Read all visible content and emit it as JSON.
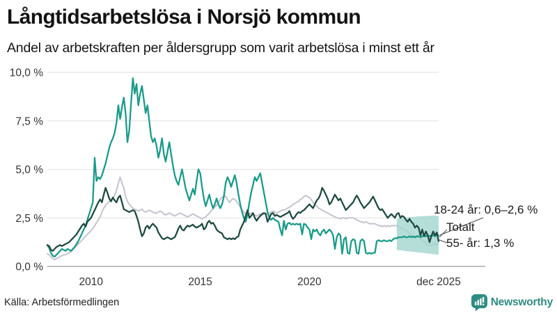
{
  "header": {
    "title": "Långtidsarbetslösa i Norsjö kommun",
    "subtitle": "Andel av arbetskraften per åldersgrupp som varit arbetslösa i minst ett år"
  },
  "chart_data": {
    "type": "line",
    "unit": "%",
    "x_start_year": 2008.0,
    "x_interval_months": 1,
    "ylim": [
      0,
      10
    ],
    "grid": "horizontal",
    "yticks": [
      {
        "value": 10,
        "label": "10,0 %"
      },
      {
        "value": 7.5,
        "label": "7,5 %"
      },
      {
        "value": 5,
        "label": "5,0 %"
      },
      {
        "value": 2.5,
        "label": "2,5 %"
      },
      {
        "value": 0,
        "label": "0,0 %"
      }
    ],
    "xticks": [
      {
        "value": 2010,
        "label": "2010"
      },
      {
        "value": 2015,
        "label": "2015"
      },
      {
        "value": 2020,
        "label": "2020"
      },
      {
        "value": 2025.9167,
        "label": "dec 2025"
      }
    ],
    "series": [
      {
        "name": "18-24 år",
        "color": "#1b9b89",
        "width": 2.3,
        "values": [
          1.1,
          0.95,
          0.7,
          0.55,
          0.5,
          0.6,
          0.7,
          0.8,
          0.9,
          0.85,
          0.8,
          0.9,
          0.85,
          0.8,
          0.9,
          1.0,
          1.15,
          1.3,
          1.5,
          1.7,
          1.9,
          2.1,
          2.4,
          2.7,
          3.0,
          3.3,
          5.6,
          4.4,
          4.6,
          4.5,
          4.7,
          5.0,
          5.3,
          5.7,
          6.1,
          6.4,
          6.6,
          6.9,
          7.4,
          8.3,
          7.6,
          8.2,
          8.7,
          7.9,
          6.4,
          7.0,
          8.4,
          9.7,
          8.9,
          9.4,
          8.3,
          8.9,
          9.3,
          8.6,
          7.9,
          8.3,
          7.5,
          6.7,
          6.4,
          6.6,
          6.2,
          5.6,
          6.0,
          6.6,
          5.8,
          5.4,
          5.9,
          6.4,
          5.8,
          5.2,
          4.7,
          4.4,
          4.2,
          4.6,
          5.0,
          4.5,
          4.0,
          3.7,
          3.4,
          3.7,
          4.0,
          3.7,
          4.4,
          5.0,
          4.8,
          4.1,
          3.5,
          3.1,
          3.4,
          3.7,
          3.3,
          3.0,
          3.2,
          3.5,
          3.2,
          3.0,
          3.2,
          3.6,
          4.3,
          4.6,
          4.4,
          4.1,
          4.4,
          4.7,
          4.3,
          3.7,
          3.2,
          2.8,
          2.5,
          2.3,
          2.7,
          3.3,
          3.8,
          4.2,
          4.6,
          4.4,
          4.6,
          4.8,
          4.3,
          3.8,
          3.3,
          2.8,
          2.5,
          2.4,
          2.5,
          2.4,
          2.35,
          2.3,
          1.9,
          1.6,
          2.35,
          1.9,
          2.2,
          2.25,
          2.15,
          2.2,
          2.15,
          2.2,
          2.15,
          2.2,
          1.65,
          2.2,
          2.15,
          2.0,
          1.9,
          1.4,
          1.9,
          1.8,
          1.9,
          1.7,
          1.6,
          1.8,
          1.9,
          1.7,
          1.8,
          1.9,
          1.8,
          1.6,
          0.9,
          1.5,
          1.7,
          1.6,
          0.65,
          1.4,
          1.5,
          0.7,
          0.65,
          1.3,
          1.4,
          1.35,
          0.7,
          0.65,
          1.3,
          1.4,
          1.3,
          0.7,
          0.65,
          0.7,
          0.65,
          0.7,
          0.7,
          1.3,
          1.35,
          1.3,
          1.3,
          1.35,
          1.3,
          1.3,
          1.35,
          1.3,
          1.4,
          1.45,
          1.45,
          1.5,
          1.5,
          1.5,
          1.55,
          1.5,
          1.5,
          1.55,
          1.5,
          1.55,
          1.5,
          1.55,
          1.55,
          1.5,
          1.55,
          1.6,
          1.55,
          1.6,
          1.55,
          1.6,
          1.6,
          1.55,
          1.65,
          1.6
        ]
      },
      {
        "name": "Totalt",
        "color": "#c5c3ce",
        "width": 2.0,
        "values": [
          0.65,
          0.6,
          0.5,
          0.4,
          0.35,
          0.4,
          0.45,
          0.5,
          0.55,
          0.6,
          0.6,
          0.65,
          0.7,
          0.75,
          0.85,
          0.95,
          1.05,
          1.15,
          1.25,
          1.35,
          1.45,
          1.55,
          1.65,
          1.75,
          1.85,
          1.95,
          2.1,
          2.25,
          2.4,
          2.55,
          2.8,
          3.0,
          3.15,
          3.25,
          3.35,
          3.45,
          3.5,
          3.7,
          3.9,
          4.3,
          4.6,
          4.3,
          4.05,
          3.6,
          3.35,
          3.2,
          3.1,
          3.0,
          2.95,
          2.9,
          2.85,
          2.9,
          2.95,
          2.85,
          2.8,
          2.85,
          2.9,
          2.85,
          2.8,
          2.75,
          2.75,
          2.8,
          2.85,
          2.8,
          2.7,
          2.65,
          2.7,
          2.75,
          2.7,
          2.65,
          2.6,
          2.65,
          2.7,
          2.75,
          2.7,
          2.65,
          2.6,
          2.55,
          2.6,
          2.65,
          2.7,
          2.65,
          2.6,
          2.55,
          2.5,
          2.45,
          2.5,
          2.55,
          2.65,
          2.75,
          2.85,
          2.95,
          3.05,
          3.15,
          3.3,
          3.45,
          3.55,
          3.65,
          3.6,
          3.45,
          3.3,
          3.4,
          3.5,
          3.45,
          3.35,
          3.2,
          3.05,
          2.9,
          2.8,
          2.7,
          2.65,
          2.7,
          2.75,
          2.7,
          2.65,
          2.6,
          2.65,
          2.7,
          2.65,
          2.7,
          2.75,
          2.7,
          2.75,
          2.8,
          2.85,
          2.8,
          2.75,
          2.8,
          2.85,
          2.9,
          2.9,
          2.95,
          3.0,
          3.05,
          3.1,
          3.2,
          3.25,
          3.3,
          3.35,
          3.45,
          3.5,
          3.6,
          3.65,
          3.6,
          3.55,
          3.45,
          3.3,
          3.2,
          3.1,
          3.0,
          2.95,
          2.9,
          2.85,
          2.8,
          2.75,
          2.7,
          2.65,
          2.6,
          2.55,
          2.5,
          2.5,
          2.45,
          2.5,
          2.5,
          2.45,
          2.5,
          2.5,
          2.5,
          2.5,
          2.45,
          2.4,
          2.35,
          2.3,
          2.3,
          2.25,
          2.3,
          2.25,
          2.2,
          2.2,
          2.2,
          2.2,
          2.15,
          2.1,
          2.1,
          2.05,
          2.1,
          2.05,
          2.1,
          2.05,
          2.1,
          2.1,
          2.1,
          2.1,
          2.05,
          2.0,
          1.95,
          1.9,
          1.85,
          1.8,
          1.7,
          1.6,
          1.5,
          1.45,
          1.5,
          1.55,
          1.45,
          1.35,
          1.3,
          1.2,
          1.1,
          1.15,
          1.05,
          1.1,
          1.2,
          1.1,
          1.4
        ]
      },
      {
        "name": "55- år",
        "color": "#1f4a42",
        "width": 2.3,
        "values": [
          1.1,
          1.05,
          0.85,
          0.8,
          0.9,
          1.0,
          1.05,
          1.1,
          1.05,
          1.1,
          1.15,
          1.2,
          1.25,
          1.35,
          1.45,
          1.55,
          1.65,
          1.8,
          1.95,
          2.1,
          2.2,
          2.05,
          2.3,
          2.4,
          2.5,
          2.7,
          2.9,
          3.1,
          3.3,
          3.45,
          3.3,
          3.7,
          4.05,
          3.8,
          3.5,
          3.35,
          3.55,
          3.4,
          3.3,
          3.55,
          3.65,
          3.3,
          2.95,
          2.9,
          2.85,
          2.8,
          2.85,
          2.9,
          2.85,
          2.6,
          2.3,
          1.9,
          1.55,
          1.7,
          2.0,
          2.1,
          1.95,
          2.1,
          2.2,
          2.1,
          2.0,
          1.75,
          1.6,
          1.45,
          1.4,
          1.45,
          1.5,
          1.45,
          1.4,
          1.45,
          1.5,
          1.7,
          1.95,
          2.1,
          1.9,
          1.85,
          2.0,
          2.1,
          2.05,
          2.1,
          2.15,
          2.05,
          2.0,
          2.05,
          2.1,
          2.2,
          1.9,
          2.0,
          2.25,
          2.35,
          2.2,
          2.25,
          2.1,
          1.9,
          1.8,
          1.75,
          1.7,
          1.5,
          1.45,
          1.4,
          1.45,
          1.4,
          1.45,
          1.4,
          1.5,
          1.55,
          1.9,
          2.1,
          2.3,
          2.6,
          2.9,
          2.5,
          2.6,
          2.75,
          2.5,
          2.35,
          2.5,
          2.6,
          2.7,
          2.75,
          2.7,
          2.3,
          2.5,
          2.7,
          2.75,
          2.6,
          2.65,
          2.6,
          2.55,
          2.6,
          2.65,
          2.7,
          2.75,
          2.85,
          2.6,
          2.45,
          2.55,
          2.7,
          2.8,
          2.75,
          2.85,
          2.9,
          3.0,
          3.1,
          3.2,
          3.1,
          3.0,
          3.2,
          3.4,
          3.5,
          3.7,
          4.05,
          3.9,
          3.7,
          3.5,
          3.2,
          3.3,
          3.5,
          3.7,
          3.55,
          3.4,
          3.5,
          3.3,
          3.1,
          2.9,
          3.0,
          3.1,
          3.2,
          3.3,
          3.5,
          3.65,
          3.5,
          3.3,
          3.15,
          3.0,
          3.1,
          3.2,
          3.3,
          3.45,
          3.6,
          3.4,
          3.2,
          3.0,
          2.9,
          2.95,
          2.8,
          2.65,
          2.5,
          2.6,
          2.7,
          2.6,
          2.5,
          2.7,
          2.75,
          2.5,
          2.6,
          2.55,
          2.4,
          2.3,
          2.45,
          2.3,
          2.2,
          2.0,
          2.1,
          2.0,
          1.6,
          1.9,
          1.55,
          1.8,
          1.6,
          1.25,
          1.55,
          1.8,
          1.6,
          1.75,
          1.3
        ]
      }
    ],
    "uncertainty_band": {
      "series": "18-24 år",
      "color": "#a3d7ce",
      "x_start_year": 2024.0,
      "upper": [
        2.45,
        2.47,
        2.48,
        2.5,
        2.5,
        2.52,
        2.52,
        2.54,
        2.55,
        2.55,
        2.56,
        2.57,
        2.58,
        2.58,
        2.59,
        2.6,
        2.6,
        2.6,
        2.61,
        2.61,
        2.62,
        2.62,
        2.6,
        2.6
      ],
      "lower": [
        0.85,
        0.84,
        0.83,
        0.82,
        0.8,
        0.79,
        0.78,
        0.77,
        0.76,
        0.75,
        0.74,
        0.73,
        0.72,
        0.71,
        0.7,
        0.69,
        0.68,
        0.66,
        0.65,
        0.64,
        0.63,
        0.62,
        0.61,
        0.6
      ]
    },
    "annotations": [
      {
        "label": "18-24 år: 0,6–2,6 %"
      },
      {
        "label": "Totalt"
      },
      {
        "label": "55- år: 1,3 %"
      }
    ]
  },
  "footer": {
    "source": "Källa: Arbetsförmedlingen",
    "brand": "Newsworthy"
  }
}
